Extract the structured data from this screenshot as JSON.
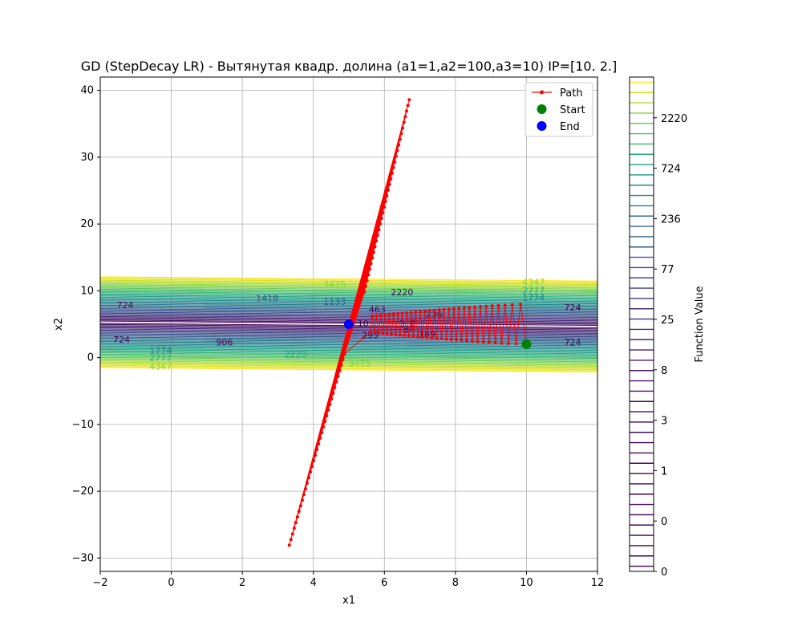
{
  "chart_data": {
    "type": "line",
    "title": "GD (StepDecay LR) - Вытянутая квадр. долина (a1=1,a2=100,a3=10) IP=[10.  2.]",
    "xlabel": "x1",
    "ylabel": "x2",
    "xlim": [
      -2,
      12
    ],
    "ylim": [
      -32,
      42
    ],
    "x_ticks": [
      -2,
      0,
      2,
      4,
      6,
      8,
      10,
      12
    ],
    "y_ticks": [
      -30,
      -20,
      -10,
      0,
      10,
      20,
      30,
      40
    ],
    "grid": true,
    "legend_placement": "top-right",
    "legend": [
      {
        "label": "Path",
        "marker": "line-dot",
        "color": "#ff0000"
      },
      {
        "label": "Start",
        "marker": "circle",
        "color": "#008000"
      },
      {
        "label": "End",
        "marker": "circle",
        "color": "#0000ff"
      }
    ],
    "function": {
      "a1": 1,
      "a2": 100,
      "a3": 10,
      "valley_center_x2": 5
    },
    "path": {
      "start": [
        10,
        2
      ],
      "end": [
        5,
        5
      ],
      "upper_tip": [
        6.7,
        38.6
      ],
      "lower_tip": [
        3.3,
        -28.5
      ],
      "color": "#ff0000"
    },
    "contour_labels": [
      {
        "text": "4347",
        "x": 10.2,
        "y": 11.3,
        "color": "#7ad151"
      },
      {
        "text": "2777",
        "x": 10.2,
        "y": 10.1,
        "color": "#22a884"
      },
      {
        "text": "1774",
        "x": 10.2,
        "y": 9.0,
        "color": "#2a788e"
      },
      {
        "text": "3475",
        "x": 4.6,
        "y": 11.0,
        "color": "#7ad151"
      },
      {
        "text": "2220",
        "x": 6.5,
        "y": 9.8,
        "color": "#440154"
      },
      {
        "text": "1418",
        "x": 2.7,
        "y": 8.9,
        "color": "#414487"
      },
      {
        "text": "1133",
        "x": 4.6,
        "y": 8.4,
        "color": "#3b528b"
      },
      {
        "text": "724",
        "x": -1.3,
        "y": 7.9,
        "color": "#440154"
      },
      {
        "text": "724",
        "x": 11.3,
        "y": 7.5,
        "color": "#440154"
      },
      {
        "text": "463",
        "x": 5.8,
        "y": 7.2,
        "color": "#440154"
      },
      {
        "text": "236",
        "x": 7.4,
        "y": 6.5,
        "color": "#440154"
      },
      {
        "text": "189",
        "x": 7.2,
        "y": 3.5,
        "color": "#440154"
      },
      {
        "text": "295",
        "x": 5.6,
        "y": 3.4,
        "color": "#440154"
      },
      {
        "text": "64",
        "x": 6.7,
        "y": 4.2,
        "color": "#440154"
      },
      {
        "text": "3",
        "x": 6.5,
        "y": 5.1,
        "color": "#440154"
      },
      {
        "text": "8",
        "x": 6.8,
        "y": 5.2,
        "color": "#440154"
      },
      {
        "text": "10",
        "x": 5.4,
        "y": 5.1,
        "color": "#440154"
      },
      {
        "text": "1774",
        "x": -0.3,
        "y": 1.1,
        "color": "#2a788e"
      },
      {
        "text": "2777",
        "x": -0.3,
        "y": 0.0,
        "color": "#22a884"
      },
      {
        "text": "4347",
        "x": -0.3,
        "y": -1.3,
        "color": "#7ad151"
      },
      {
        "text": "2220",
        "x": 3.5,
        "y": 0.5,
        "color": "#22a884"
      },
      {
        "text": "3475",
        "x": 5.3,
        "y": -0.8,
        "color": "#7ad151"
      },
      {
        "text": "724",
        "x": -1.4,
        "y": 2.7,
        "color": "#440154"
      },
      {
        "text": "724",
        "x": 11.3,
        "y": 2.3,
        "color": "#440154"
      },
      {
        "text": "906",
        "x": 1.5,
        "y": 2.3,
        "color": "#440154"
      }
    ]
  },
  "colorbar": {
    "label": "Function Value",
    "tick_labels": [
      "0",
      "0",
      "1",
      "3",
      "8",
      "25",
      "77",
      "236",
      "724",
      "2220"
    ]
  }
}
